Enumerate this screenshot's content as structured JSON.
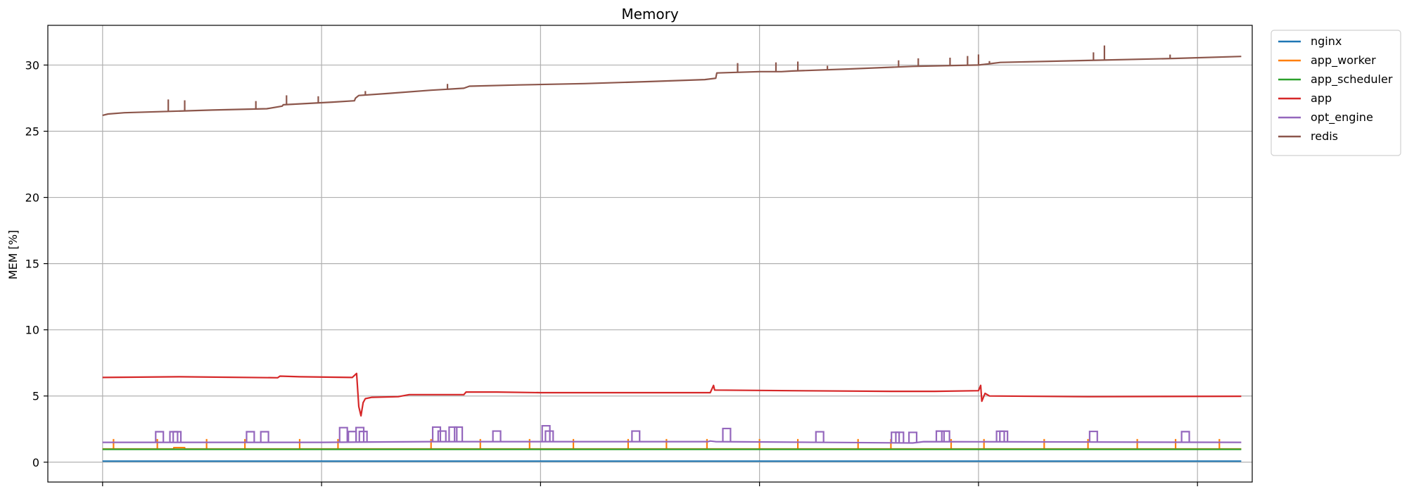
{
  "chart_data": {
    "type": "line",
    "title": "Memory",
    "xlabel": "",
    "ylabel": "MEM [%]",
    "ylim": [
      -1.5,
      33
    ],
    "xlim": [
      -0.05,
      1.05
    ],
    "yticks": [
      0,
      5,
      10,
      15,
      20,
      25,
      30
    ],
    "xgrid": [
      0,
      0.2,
      0.4,
      0.6,
      0.8,
      1.0
    ],
    "grid": true,
    "x_tick_labels_shown": false,
    "legend_position": "outside-upper-right",
    "series": [
      {
        "name": "nginx",
        "color": "#1f77b4",
        "points": [
          [
            0,
            0.08
          ],
          [
            1.04,
            0.08
          ]
        ]
      },
      {
        "name": "app_worker",
        "color": "#ff7f0e",
        "points": [
          [
            0,
            1.0
          ],
          [
            0.065,
            1.0
          ],
          [
            0.065,
            1.1
          ],
          [
            0.075,
            1.1
          ],
          [
            0.075,
            1.0
          ],
          [
            1.04,
            1.0
          ]
        ],
        "spikes": [
          0.01,
          0.05,
          0.095,
          0.13,
          0.18,
          0.215,
          0.3,
          0.345,
          0.39,
          0.43,
          0.48,
          0.515,
          0.552,
          0.6,
          0.635,
          0.69,
          0.72,
          0.775,
          0.805,
          0.86,
          0.9,
          0.945,
          0.98,
          1.02
        ],
        "spike_height": 0.75
      },
      {
        "name": "app_scheduler",
        "color": "#2ca02c",
        "points": [
          [
            0,
            0.97
          ],
          [
            1.04,
            0.97
          ]
        ]
      },
      {
        "name": "app",
        "color": "#d62728",
        "points": [
          [
            0,
            6.4
          ],
          [
            0.07,
            6.45
          ],
          [
            0.16,
            6.38
          ],
          [
            0.162,
            6.5
          ],
          [
            0.18,
            6.45
          ],
          [
            0.228,
            6.4
          ],
          [
            0.232,
            6.7
          ],
          [
            0.234,
            4.2
          ],
          [
            0.236,
            3.5
          ],
          [
            0.238,
            4.5
          ],
          [
            0.24,
            4.8
          ],
          [
            0.246,
            4.9
          ],
          [
            0.27,
            4.95
          ],
          [
            0.28,
            5.1
          ],
          [
            0.31,
            5.1
          ],
          [
            0.33,
            5.1
          ],
          [
            0.332,
            5.3
          ],
          [
            0.36,
            5.3
          ],
          [
            0.4,
            5.25
          ],
          [
            0.48,
            5.25
          ],
          [
            0.555,
            5.25
          ],
          [
            0.558,
            5.8
          ],
          [
            0.559,
            5.45
          ],
          [
            0.63,
            5.4
          ],
          [
            0.72,
            5.35
          ],
          [
            0.76,
            5.35
          ],
          [
            0.8,
            5.4
          ],
          [
            0.802,
            5.8
          ],
          [
            0.803,
            4.6
          ],
          [
            0.806,
            5.2
          ],
          [
            0.81,
            5.0
          ],
          [
            0.9,
            4.95
          ],
          [
            1.04,
            4.98
          ]
        ]
      },
      {
        "name": "opt_engine",
        "color": "#9467bd",
        "points": [
          [
            0,
            1.5
          ],
          [
            0.2,
            1.5
          ],
          [
            0.3,
            1.55
          ],
          [
            0.553,
            1.55
          ],
          [
            0.555,
            1.6
          ],
          [
            0.56,
            1.55
          ],
          [
            0.74,
            1.45
          ],
          [
            0.75,
            1.55
          ],
          [
            1.04,
            1.5
          ]
        ],
        "bumps": [
          [
            0.052,
            0.8
          ],
          [
            0.065,
            0.8
          ],
          [
            0.068,
            0.8
          ],
          [
            0.135,
            0.8
          ],
          [
            0.148,
            0.8
          ],
          [
            0.22,
            1.1
          ],
          [
            0.228,
            0.8
          ],
          [
            0.235,
            1.1
          ],
          [
            0.238,
            0.8
          ],
          [
            0.305,
            1.1
          ],
          [
            0.31,
            0.8
          ],
          [
            0.32,
            1.1
          ],
          [
            0.325,
            1.1
          ],
          [
            0.36,
            0.8
          ],
          [
            0.405,
            1.2
          ],
          [
            0.408,
            0.8
          ],
          [
            0.487,
            0.8
          ],
          [
            0.57,
            1.0
          ],
          [
            0.655,
            0.8
          ],
          [
            0.724,
            0.8
          ],
          [
            0.728,
            0.8
          ],
          [
            0.74,
            0.8
          ],
          [
            0.765,
            0.8
          ],
          [
            0.77,
            0.8
          ],
          [
            0.82,
            0.8
          ],
          [
            0.823,
            0.8
          ],
          [
            0.905,
            0.8
          ],
          [
            0.989,
            0.8
          ]
        ]
      },
      {
        "name": "redis",
        "color": "#8c564b",
        "points": [
          [
            0,
            26.2
          ],
          [
            0.005,
            26.3
          ],
          [
            0.02,
            26.4
          ],
          [
            0.06,
            26.5
          ],
          [
            0.1,
            26.6
          ],
          [
            0.15,
            26.7
          ],
          [
            0.164,
            26.9
          ],
          [
            0.165,
            27.0
          ],
          [
            0.21,
            27.2
          ],
          [
            0.23,
            27.3
          ],
          [
            0.231,
            27.5
          ],
          [
            0.234,
            27.7
          ],
          [
            0.26,
            27.85
          ],
          [
            0.3,
            28.1
          ],
          [
            0.33,
            28.25
          ],
          [
            0.335,
            28.4
          ],
          [
            0.38,
            28.5
          ],
          [
            0.44,
            28.6
          ],
          [
            0.5,
            28.75
          ],
          [
            0.55,
            28.9
          ],
          [
            0.56,
            29.0
          ],
          [
            0.561,
            29.4
          ],
          [
            0.6,
            29.5
          ],
          [
            0.62,
            29.5
          ],
          [
            0.63,
            29.55
          ],
          [
            0.68,
            29.7
          ],
          [
            0.74,
            29.9
          ],
          [
            0.8,
            30.0
          ],
          [
            0.81,
            30.1
          ],
          [
            0.82,
            30.2
          ],
          [
            0.9,
            30.35
          ],
          [
            0.98,
            30.5
          ],
          [
            1.04,
            30.65
          ]
        ],
        "spikes": [
          [
            0.06,
            0.9
          ],
          [
            0.075,
            0.8
          ],
          [
            0.14,
            0.6
          ],
          [
            0.168,
            0.7
          ],
          [
            0.197,
            0.5
          ],
          [
            0.24,
            0.3
          ],
          [
            0.315,
            0.4
          ],
          [
            0.58,
            0.7
          ],
          [
            0.615,
            0.7
          ],
          [
            0.635,
            0.7
          ],
          [
            0.662,
            0.3
          ],
          [
            0.727,
            0.5
          ],
          [
            0.745,
            0.6
          ],
          [
            0.774,
            0.6
          ],
          [
            0.79,
            0.7
          ],
          [
            0.8,
            0.8
          ],
          [
            0.81,
            0.2
          ],
          [
            0.905,
            0.6
          ],
          [
            0.915,
            1.1
          ],
          [
            0.975,
            0.3
          ]
        ]
      }
    ]
  }
}
